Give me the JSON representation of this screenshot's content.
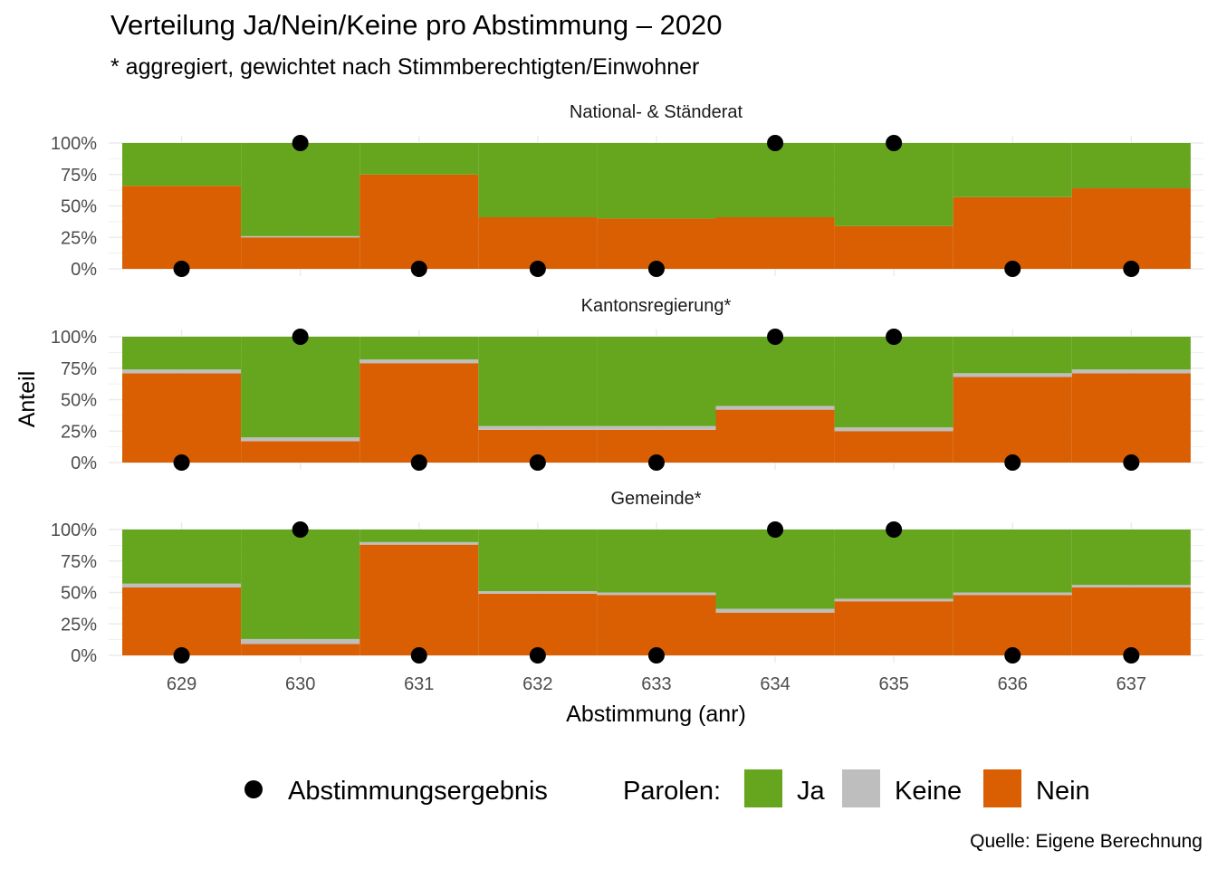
{
  "header": {
    "title": "Verteilung Ja/Nein/Keine pro Abstimmung – 2020",
    "subtitle": "* aggregiert, gewichtet nach Stimmberechtigten/Einwohner"
  },
  "caption": "Quelle: Eigene Berechnung",
  "colors": {
    "ja": "#66a61e",
    "keine": "#bebebe",
    "nein": "#d95f02",
    "point": "#000000",
    "grid": "#ebebeb"
  },
  "chart_data": {
    "type": "bar",
    "subtype": "stacked-proportion-faceted",
    "x": [
      "629",
      "630",
      "631",
      "632",
      "633",
      "634",
      "635",
      "636",
      "637"
    ],
    "xlabel": "Abstimmung (anr)",
    "ylabel": "Anteil",
    "ylim": [
      0,
      1
    ],
    "yticks": [
      "0%",
      "25%",
      "50%",
      "75%",
      "100%"
    ],
    "grid": true,
    "legend_position": "bottom",
    "legend": {
      "point_label": "Abstimmungsergebnis",
      "fill_title": "Parolen:",
      "fill_items": [
        {
          "key": "ja",
          "label": "Ja"
        },
        {
          "key": "keine",
          "label": "Keine"
        },
        {
          "key": "nein",
          "label": "Nein"
        }
      ]
    },
    "result": [
      0,
      1,
      0,
      0,
      0,
      1,
      1,
      0,
      0
    ],
    "panels": [
      {
        "label": "National- & Ständerat",
        "nein": [
          0.66,
          0.25,
          0.75,
          0.41,
          0.4,
          0.41,
          0.34,
          0.57,
          0.64
        ],
        "keine": [
          0.0,
          0.01,
          0.0,
          0.0,
          0.0,
          0.0,
          0.0,
          0.0,
          0.0
        ],
        "ja": [
          0.34,
          0.74,
          0.25,
          0.59,
          0.6,
          0.59,
          0.66,
          0.43,
          0.36
        ]
      },
      {
        "label": "Kantonsregierung*",
        "nein": [
          0.71,
          0.17,
          0.79,
          0.26,
          0.26,
          0.42,
          0.25,
          0.68,
          0.71
        ],
        "keine": [
          0.03,
          0.03,
          0.03,
          0.03,
          0.03,
          0.03,
          0.03,
          0.03,
          0.03
        ],
        "ja": [
          0.26,
          0.8,
          0.18,
          0.71,
          0.71,
          0.55,
          0.72,
          0.29,
          0.26
        ]
      },
      {
        "label": "Gemeinde*",
        "nein": [
          0.54,
          0.09,
          0.88,
          0.49,
          0.48,
          0.34,
          0.43,
          0.48,
          0.54
        ],
        "keine": [
          0.03,
          0.04,
          0.02,
          0.02,
          0.02,
          0.03,
          0.02,
          0.02,
          0.02
        ],
        "ja": [
          0.43,
          0.87,
          0.1,
          0.49,
          0.5,
          0.63,
          0.55,
          0.5,
          0.44
        ]
      }
    ]
  }
}
